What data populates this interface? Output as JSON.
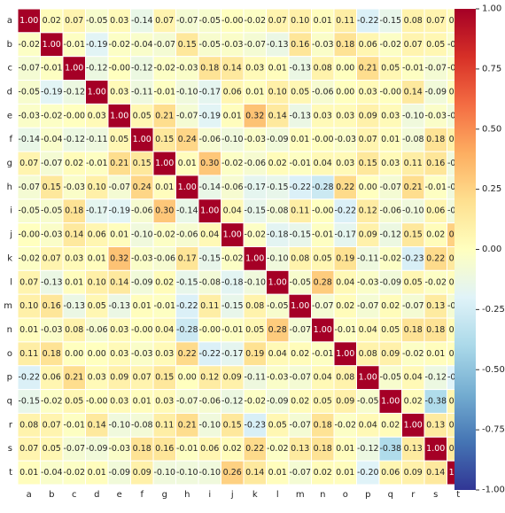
{
  "chart_data": {
    "type": "heatmap",
    "title": "",
    "xlabel": "",
    "ylabel": "",
    "x_labels": [
      "a",
      "b",
      "c",
      "d",
      "e",
      "f",
      "g",
      "h",
      "i",
      "j",
      "k",
      "l",
      "m",
      "n",
      "o",
      "p",
      "q",
      "r",
      "s",
      "t"
    ],
    "y_labels": [
      "a",
      "b",
      "c",
      "d",
      "e",
      "f",
      "g",
      "h",
      "i",
      "j",
      "k",
      "l",
      "m",
      "n",
      "o",
      "p",
      "q",
      "r",
      "s",
      "t"
    ],
    "values": [
      [
        1.0,
        0.02,
        0.07,
        -0.05,
        0.03,
        -0.14,
        0.07,
        -0.07,
        -0.05,
        -0.0,
        -0.02,
        0.07,
        0.1,
        0.01,
        0.11,
        -0.22,
        -0.15,
        0.08,
        0.07,
        0.01
      ],
      [
        -0.02,
        1.0,
        -0.01,
        -0.19,
        -0.02,
        -0.04,
        -0.07,
        0.15,
        -0.05,
        -0.03,
        -0.07,
        -0.13,
        0.16,
        -0.03,
        0.18,
        0.06,
        -0.02,
        0.07,
        0.05,
        -0.04
      ],
      [
        -0.07,
        -0.01,
        1.0,
        -0.12,
        -0.0,
        -0.12,
        -0.02,
        -0.03,
        0.18,
        0.14,
        0.03,
        0.01,
        -0.13,
        0.08,
        0.0,
        0.21,
        0.05,
        -0.01,
        -0.07,
        -0.02
      ],
      [
        -0.05,
        -0.19,
        -0.12,
        1.0,
        0.03,
        -0.11,
        -0.01,
        -0.1,
        -0.17,
        0.06,
        0.01,
        0.1,
        0.05,
        -0.06,
        0.0,
        0.03,
        -0.0,
        0.14,
        -0.09,
        0.01
      ],
      [
        -0.03,
        -0.02,
        -0.0,
        0.03,
        1.0,
        0.05,
        0.21,
        -0.07,
        -0.19,
        0.01,
        0.32,
        0.14,
        -0.13,
        0.03,
        0.03,
        0.09,
        0.03,
        -0.1,
        -0.03,
        -0.09
      ],
      [
        -0.14,
        -0.04,
        -0.12,
        -0.11,
        0.05,
        1.0,
        0.15,
        0.24,
        -0.06,
        -0.1,
        -0.03,
        -0.09,
        0.01,
        -0.0,
        -0.03,
        0.07,
        0.01,
        -0.08,
        0.18,
        0.09
      ],
      [
        0.07,
        -0.07,
        0.02,
        -0.01,
        0.21,
        0.15,
        1.0,
        0.01,
        0.3,
        -0.02,
        -0.06,
        0.02,
        -0.01,
        0.04,
        0.03,
        0.15,
        0.03,
        0.11,
        0.16,
        -0.1
      ],
      [
        -0.07,
        0.15,
        -0.03,
        0.1,
        -0.07,
        0.24,
        0.01,
        1.0,
        -0.14,
        -0.06,
        -0.17,
        -0.15,
        -0.22,
        -0.28,
        0.22,
        0.0,
        -0.07,
        0.21,
        -0.01,
        -0.1
      ],
      [
        -0.05,
        -0.05,
        0.18,
        -0.17,
        -0.19,
        -0.06,
        0.3,
        -0.14,
        1.0,
        0.04,
        -0.15,
        -0.08,
        0.11,
        -0.0,
        -0.22,
        0.12,
        -0.06,
        -0.1,
        0.06,
        -0.1
      ],
      [
        -0.0,
        -0.03,
        0.14,
        0.06,
        0.01,
        -0.1,
        -0.02,
        -0.06,
        0.04,
        1.0,
        -0.02,
        -0.18,
        -0.15,
        -0.01,
        -0.17,
        0.09,
        -0.12,
        0.15,
        0.02,
        0.26
      ],
      [
        -0.02,
        0.07,
        0.03,
        0.01,
        0.32,
        -0.03,
        -0.06,
        0.17,
        -0.15,
        -0.02,
        1.0,
        -0.1,
        0.08,
        0.05,
        0.19,
        -0.11,
        -0.02,
        -0.23,
        0.22,
        0.14
      ],
      [
        0.07,
        -0.13,
        0.01,
        0.1,
        0.14,
        -0.09,
        0.02,
        -0.15,
        -0.08,
        -0.18,
        -0.1,
        1.0,
        -0.05,
        0.28,
        0.04,
        -0.03,
        -0.09,
        0.05,
        -0.02,
        0.01
      ],
      [
        0.1,
        0.16,
        -0.13,
        0.05,
        -0.13,
        0.01,
        -0.01,
        -0.22,
        0.11,
        -0.15,
        0.08,
        -0.05,
        1.0,
        -0.07,
        0.02,
        -0.07,
        0.02,
        -0.07,
        0.13,
        -0.07
      ],
      [
        0.01,
        -0.03,
        0.08,
        -0.06,
        0.03,
        -0.0,
        0.04,
        -0.28,
        -0.0,
        -0.01,
        0.05,
        0.28,
        -0.07,
        1.0,
        -0.01,
        0.04,
        0.05,
        0.18,
        0.18,
        0.02
      ],
      [
        0.11,
        0.18,
        0.0,
        0.0,
        0.03,
        -0.03,
        0.03,
        0.22,
        -0.22,
        -0.17,
        0.19,
        0.04,
        0.02,
        -0.01,
        1.0,
        0.08,
        0.09,
        -0.02,
        0.01,
        0.01
      ],
      [
        -0.22,
        0.06,
        0.21,
        0.03,
        0.09,
        0.07,
        0.15,
        0.0,
        0.12,
        0.09,
        -0.11,
        -0.03,
        -0.07,
        0.04,
        0.08,
        1.0,
        -0.05,
        0.04,
        -0.12,
        -0.2
      ],
      [
        -0.15,
        -0.02,
        0.05,
        -0.0,
        0.03,
        0.01,
        0.03,
        -0.07,
        -0.06,
        -0.12,
        -0.02,
        -0.09,
        0.02,
        0.05,
        0.09,
        -0.05,
        1.0,
        0.02,
        -0.38,
        0.06
      ],
      [
        0.08,
        0.07,
        -0.01,
        0.14,
        -0.1,
        -0.08,
        0.11,
        0.21,
        -0.1,
        0.15,
        -0.23,
        0.05,
        -0.07,
        0.18,
        -0.02,
        0.04,
        0.02,
        1.0,
        0.13,
        0.09
      ],
      [
        0.07,
        0.05,
        -0.07,
        -0.09,
        -0.03,
        0.18,
        0.16,
        -0.01,
        0.06,
        0.02,
        0.22,
        -0.02,
        0.13,
        0.18,
        0.01,
        -0.12,
        -0.38,
        0.13,
        1.0,
        0.14
      ],
      [
        0.01,
        -0.04,
        -0.02,
        0.01,
        -0.09,
        0.09,
        -0.1,
        -0.1,
        -0.1,
        0.26,
        0.14,
        0.01,
        -0.07,
        0.02,
        0.01,
        -0.2,
        0.06,
        0.09,
        0.14,
        1.0
      ]
    ],
    "colorbar": {
      "cmap": "RdYlBu_r",
      "vmin": -1.0,
      "vmax": 1.0,
      "ticks": [
        "-1.00",
        "-0.75",
        "-0.50",
        "-0.25",
        "0.00",
        "0.25",
        "0.50",
        "0.75",
        "1.00"
      ]
    },
    "grid": true
  }
}
